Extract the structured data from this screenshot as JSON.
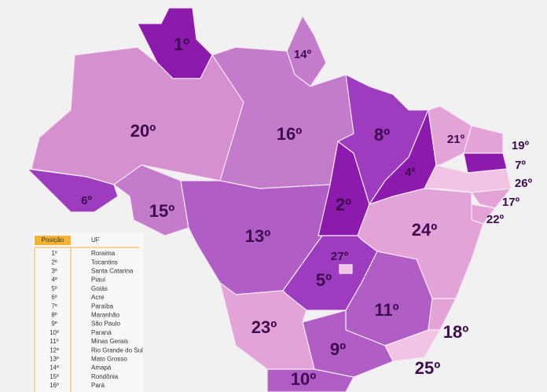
{
  "regions": [
    {
      "label": "1º",
      "color": "#8c1aad"
    },
    {
      "label": "14º",
      "color": "#c47bcb"
    },
    {
      "label": "20º",
      "color": "#d68fcf"
    },
    {
      "label": "16º",
      "color": "#c47bcb"
    },
    {
      "label": "6º",
      "color": "#9d3cbf"
    },
    {
      "label": "15º",
      "color": "#c47bcb"
    },
    {
      "label": "13º",
      "color": "#b05ec6"
    },
    {
      "label": "2º",
      "color": "#8c1aad"
    },
    {
      "label": "8º",
      "color": "#9d3cbf"
    },
    {
      "label": "4º",
      "color": "#8c1aad"
    },
    {
      "label": "21º",
      "color": "#e3a3d6"
    },
    {
      "label": "19º",
      "color": "#e3a3d6"
    },
    {
      "label": "7º",
      "color": "#8c1aad"
    },
    {
      "label": "26º",
      "color": "#f3c3e6"
    },
    {
      "label": "17º",
      "color": "#e3a3d6"
    },
    {
      "label": "22º",
      "color": "#e3a3d6"
    },
    {
      "label": "24º",
      "color": "#e3a3d6"
    },
    {
      "label": "5º",
      "color": "#9d3cbf"
    },
    {
      "label": "27º",
      "color": "#f3c3e6"
    },
    {
      "label": "11º",
      "color": "#b05ec6"
    },
    {
      "label": "18º",
      "color": "#e3a3d6"
    },
    {
      "label": "25º",
      "color": "#f3c3e6"
    },
    {
      "label": "9º",
      "color": "#b05ec6"
    },
    {
      "label": "23º",
      "color": "#e3a3d6"
    },
    {
      "label": "10º",
      "color": "#b05ec6"
    }
  ],
  "table": {
    "headers": [
      "Posição",
      "UF"
    ],
    "rows": [
      [
        "1º",
        "Roraima"
      ],
      [
        "2º",
        "Tocantins"
      ],
      [
        "3º",
        "Santa Catarina"
      ],
      [
        "4º",
        "Piauí"
      ],
      [
        "5º",
        "Goiás"
      ],
      [
        "6º",
        "Acre"
      ],
      [
        "7º",
        "Paraíba"
      ],
      [
        "8º",
        "Maranhão"
      ],
      [
        "9º",
        "São Paulo"
      ],
      [
        "10º",
        "Paraná"
      ],
      [
        "11º",
        "Minas Gerais"
      ],
      [
        "12º",
        "Rio Grande do Sul"
      ],
      [
        "13º",
        "Mato Grosso"
      ],
      [
        "14º",
        "Amapá"
      ],
      [
        "15º",
        "Rondônia"
      ],
      [
        "16º",
        "Pará"
      ]
    ]
  }
}
